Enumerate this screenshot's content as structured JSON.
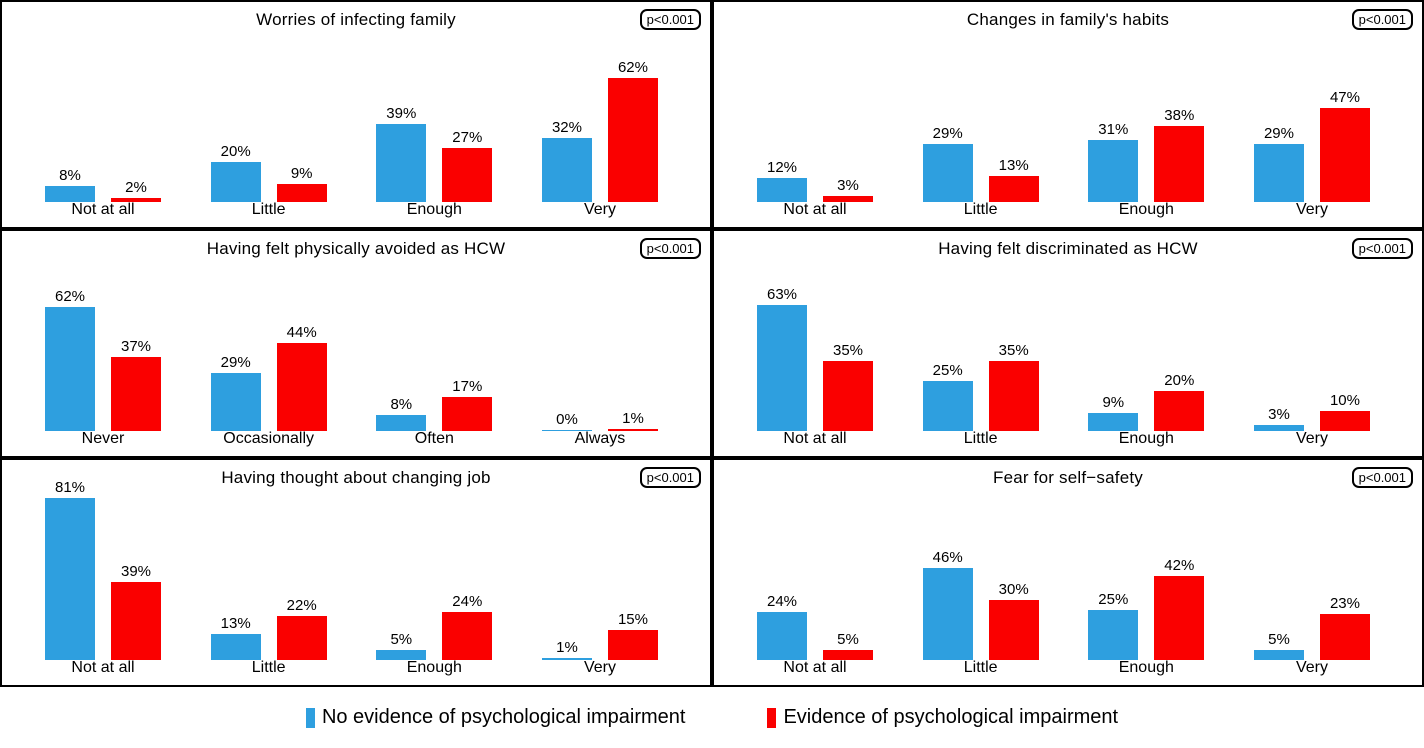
{
  "figure": {
    "colors": {
      "no_evidence": "#2E9FDF",
      "evidence": "#FA0000",
      "border": "#000000",
      "text": "#000000",
      "background": "#FFFFFF"
    }
  },
  "legend": {
    "position": "bottom",
    "items": [
      {
        "key": "no_evidence",
        "label": "No evidence of psychological impairment"
      },
      {
        "key": "evidence",
        "label": "Evidence of psychological impairment"
      }
    ]
  },
  "chart_data": [
    {
      "type": "bar",
      "title": "Worries of infecting family",
      "p_value": "p<0.001",
      "categories": [
        "Not at all",
        "Little",
        "Enough",
        "Very"
      ],
      "series": [
        {
          "name": "No evidence of psychological impairment",
          "color": "#2E9FDF",
          "values": [
            8,
            20,
            39,
            32
          ]
        },
        {
          "name": "Evidence of psychological impairment",
          "color": "#FA0000",
          "values": [
            2,
            9,
            27,
            62
          ]
        }
      ],
      "value_suffix": "%",
      "ylim": [
        0,
        100
      ],
      "grid": false,
      "value_labels": true
    },
    {
      "type": "bar",
      "title": "Changes in family's habits",
      "p_value": "p<0.001",
      "categories": [
        "Not at all",
        "Little",
        "Enough",
        "Very"
      ],
      "series": [
        {
          "name": "No evidence of psychological impairment",
          "color": "#2E9FDF",
          "values": [
            12,
            29,
            31,
            29
          ]
        },
        {
          "name": "Evidence of psychological impairment",
          "color": "#FA0000",
          "values": [
            3,
            13,
            38,
            47
          ]
        }
      ],
      "value_suffix": "%",
      "ylim": [
        0,
        100
      ],
      "grid": false,
      "value_labels": true
    },
    {
      "type": "bar",
      "title": "Having felt physically avoided as HCW",
      "p_value": "p<0.001",
      "categories": [
        "Never",
        "Occasionally",
        "Often",
        "Always"
      ],
      "series": [
        {
          "name": "No evidence of psychological impairment",
          "color": "#2E9FDF",
          "values": [
            62,
            29,
            8,
            0
          ]
        },
        {
          "name": "Evidence of psychological impairment",
          "color": "#FA0000",
          "values": [
            37,
            44,
            17,
            1
          ]
        }
      ],
      "value_suffix": "%",
      "ylim": [
        0,
        100
      ],
      "grid": false,
      "value_labels": true
    },
    {
      "type": "bar",
      "title": "Having felt discriminated as HCW",
      "p_value": "p<0.001",
      "categories": [
        "Not at all",
        "Little",
        "Enough",
        "Very"
      ],
      "series": [
        {
          "name": "No evidence of psychological impairment",
          "color": "#2E9FDF",
          "values": [
            63,
            25,
            9,
            3
          ]
        },
        {
          "name": "Evidence of psychological impairment",
          "color": "#FA0000",
          "values": [
            35,
            35,
            20,
            10
          ]
        }
      ],
      "value_suffix": "%",
      "ylim": [
        0,
        100
      ],
      "grid": false,
      "value_labels": true
    },
    {
      "type": "bar",
      "title": "Having thought about changing job",
      "p_value": "p<0.001",
      "categories": [
        "Not at all",
        "Little",
        "Enough",
        "Very"
      ],
      "series": [
        {
          "name": "No evidence of psychological impairment",
          "color": "#2E9FDF",
          "values": [
            81,
            13,
            5,
            1
          ]
        },
        {
          "name": "Evidence of psychological impairment",
          "color": "#FA0000",
          "values": [
            39,
            22,
            24,
            15
          ]
        }
      ],
      "value_suffix": "%",
      "ylim": [
        0,
        100
      ],
      "grid": false,
      "value_labels": true
    },
    {
      "type": "bar",
      "title": "Fear for self−safety",
      "p_value": "p<0.001",
      "categories": [
        "Not at all",
        "Little",
        "Enough",
        "Very"
      ],
      "series": [
        {
          "name": "No evidence of psychological impairment",
          "color": "#2E9FDF",
          "values": [
            24,
            46,
            25,
            5
          ]
        },
        {
          "name": "Evidence of psychological impairment",
          "color": "#FA0000",
          "values": [
            5,
            30,
            42,
            23
          ]
        }
      ],
      "value_suffix": "%",
      "ylim": [
        0,
        100
      ],
      "grid": false,
      "value_labels": true
    }
  ]
}
